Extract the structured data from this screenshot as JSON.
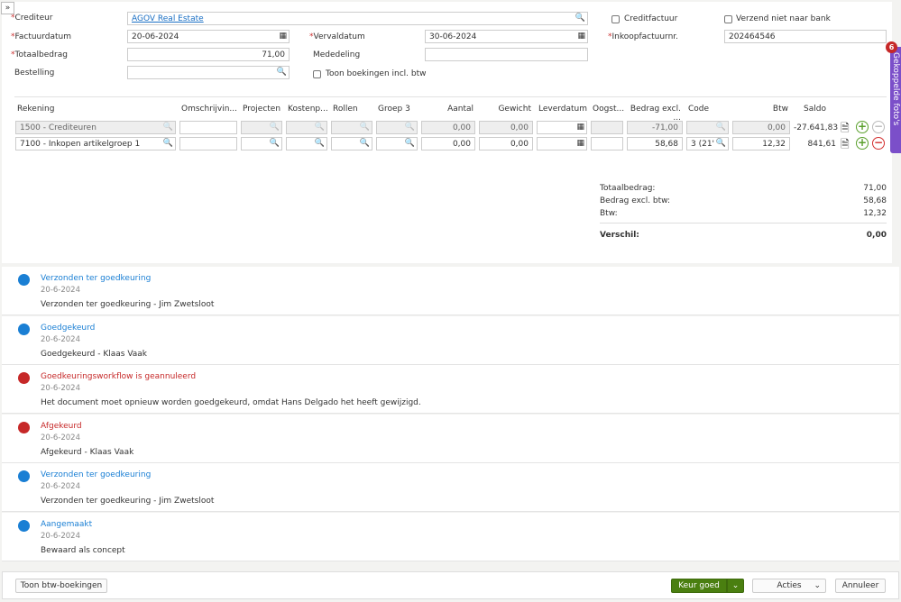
{
  "form": {
    "crediteur_label": "Crediteur",
    "crediteur_value": "AGOV Real Estate",
    "factuurdatum_label": "Factuurdatum",
    "factuurdatum_value": "20-06-2024",
    "vervaldatum_label": "Vervaldatum",
    "vervaldatum_value": "30-06-2024",
    "totaalbedrag_label": "Totaalbedrag",
    "totaalbedrag_value": "71,00",
    "mededeling_label": "Mededeling",
    "mededeling_value": "",
    "bestelling_label": "Bestelling",
    "bestelling_value": "",
    "toon_incl_btw_label": "Toon boekingen incl. btw",
    "creditfactuur_label": "Creditfactuur",
    "verzend_label": "Verzend niet naar bank",
    "inkoopfactuurnr_label": "Inkoopfactuurnr.",
    "inkoopfactuurnr_value": "202464546"
  },
  "table": {
    "headers": [
      "Rekening",
      "Omschrijvin...",
      "Projecten",
      "Kostenp...",
      "Rollen",
      "Groep 3",
      "Aantal",
      "Gewicht",
      "Leverdatum",
      "Oogst...",
      "Bedrag excl. ...",
      "Code",
      "Btw",
      "Saldo"
    ],
    "rows": [
      {
        "rekening": "1500 - Crediteuren",
        "aantal": "0,00",
        "gewicht": "0,00",
        "bedrag": "-71,00",
        "code": "",
        "btw": "0,00",
        "saldo": "-27.641,83",
        "disabled": true
      },
      {
        "rekening": "7100 - Inkopen artikelgroep 1",
        "aantal": "0,00",
        "gewicht": "0,00",
        "bedrag": "58,68",
        "code": "3 (21'",
        "btw": "12,32",
        "saldo": "841,61",
        "disabled": false
      }
    ]
  },
  "totals": {
    "totaal_label": "Totaalbedrag:",
    "totaal_value": "71,00",
    "excl_label": "Bedrag excl. btw:",
    "excl_value": "58,68",
    "btw_label": "Btw:",
    "btw_value": "12,32",
    "verschil_label": "Verschil:",
    "verschil_value": "0,00"
  },
  "side_tab": {
    "label": "Gekoppelde foto's",
    "badge": "6",
    "color": "#7b4fc9"
  },
  "timeline": [
    {
      "title": "Verzonden ter goedkeuring",
      "date": "20-6-2024",
      "text": "Verzonden ter goedkeuring - Jim Zwetsloot",
      "status": "blue"
    },
    {
      "title": "Goedgekeurd",
      "date": "20-6-2024",
      "text": "Goedgekeurd - Klaas Vaak",
      "status": "blue"
    },
    {
      "title": "Goedkeuringsworkflow is geannuleerd",
      "date": "20-6-2024",
      "text": "Het document moet opnieuw worden goedgekeurd, omdat Hans Delgado het heeft gewijzigd.",
      "status": "red"
    },
    {
      "title": "Afgekeurd",
      "date": "20-6-2024",
      "text": "Afgekeurd - Klaas Vaak",
      "status": "red"
    },
    {
      "title": "Verzonden ter goedkeuring",
      "date": "20-6-2024",
      "text": "Verzonden ter goedkeuring - Jim Zwetsloot",
      "status": "blue"
    },
    {
      "title": "Aangemaakt",
      "date": "20-6-2024",
      "text": "Bewaard als concept",
      "status": "blue"
    }
  ],
  "colors": {
    "blue": "#1a7fd4",
    "red": "#c62828",
    "green": "#4a7f10"
  },
  "footer": {
    "toon_btw": "Toon btw-boekingen",
    "keur_goed": "Keur goed",
    "acties": "Acties",
    "annuleer": "Annuleer"
  }
}
